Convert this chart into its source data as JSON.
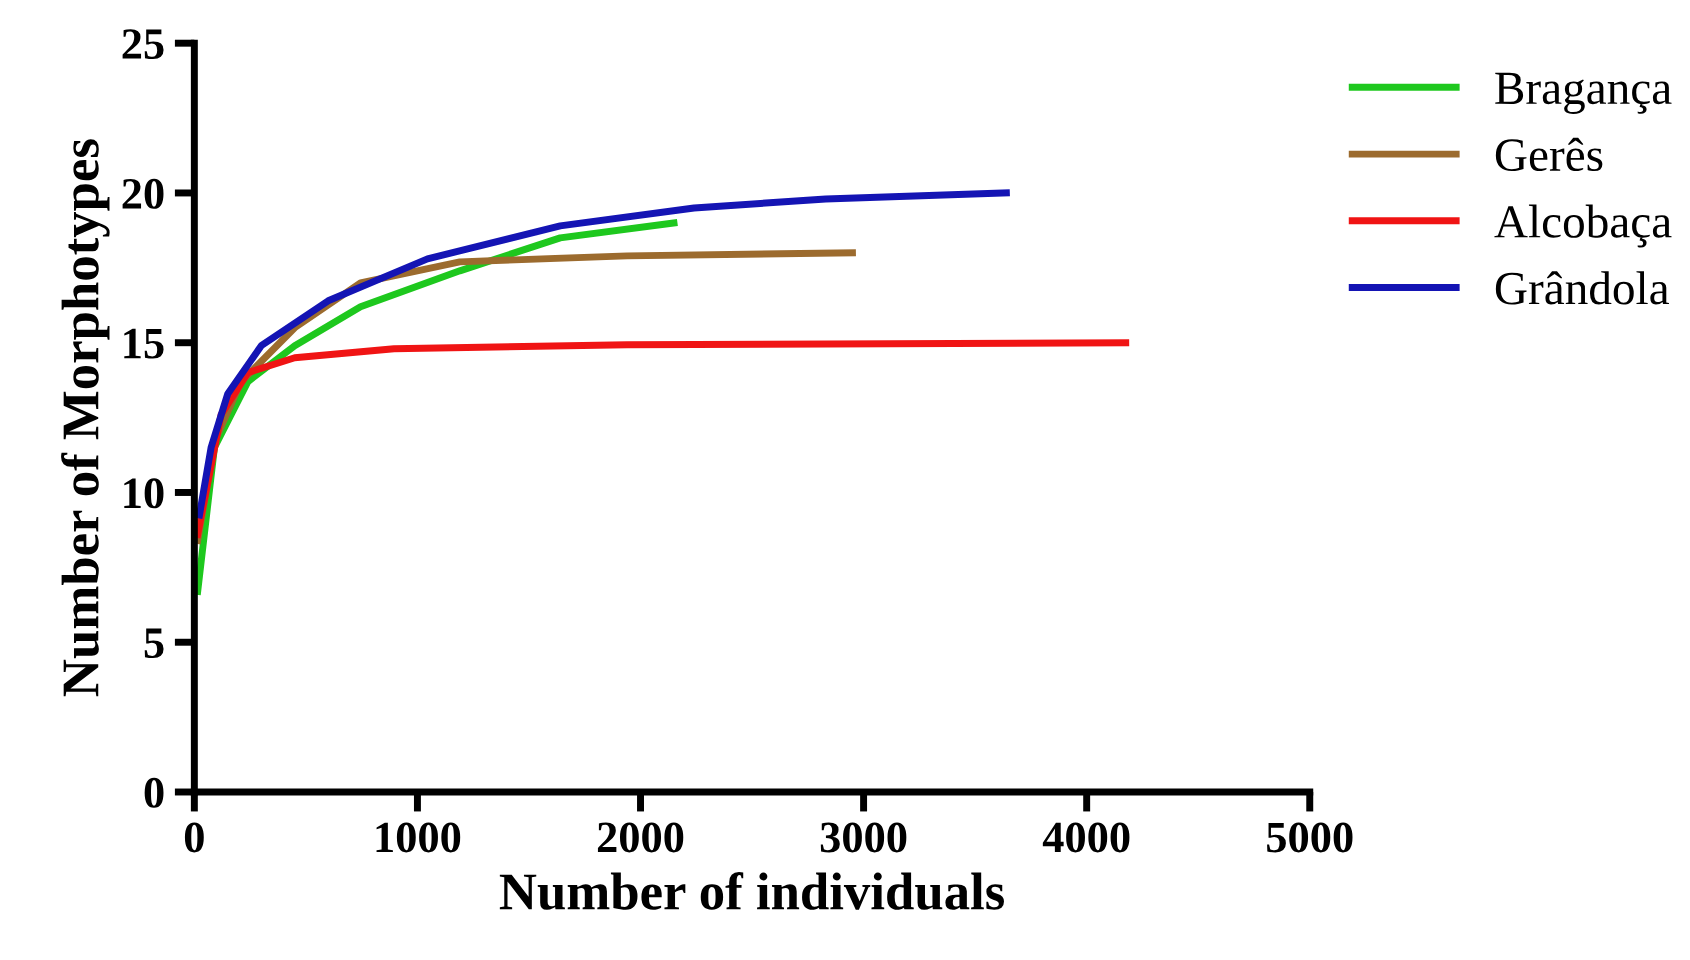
{
  "chart_data": {
    "type": "line",
    "xlabel": "Number of individuals",
    "ylabel": "Number of Morphotypes",
    "xlim": [
      0,
      5000
    ],
    "xticks": [
      0,
      1000,
      2000,
      3000,
      4000,
      5000
    ],
    "ylim": [
      0,
      25
    ],
    "yticks": [
      0,
      5,
      10,
      15,
      20,
      25
    ],
    "grid": false,
    "legend": "top right",
    "marker": "none",
    "line_style": "solid",
    "series": [
      {
        "name": "Bragança",
        "color": "#1ec81e",
        "x": [
          15,
          90,
          240,
          450,
          745,
          1190,
          1640,
          2150
        ],
        "values": [
          6.7,
          11.5,
          13.7,
          14.9,
          16.2,
          17.4,
          18.5,
          19.0
        ]
      },
      {
        "name": "Gerês",
        "color": "#9c6b2e",
        "x": [
          15,
          90,
          210,
          450,
          745,
          1190,
          1940,
          2950
        ],
        "values": [
          8.4,
          11.7,
          13.7,
          15.5,
          17.0,
          17.7,
          17.9,
          18.0
        ]
      },
      {
        "name": "Alcobaça",
        "color": "#f01414",
        "x": [
          15,
          120,
          240,
          450,
          895,
          1940,
          4175
        ],
        "values": [
          8.6,
          12.6,
          14.0,
          14.5,
          14.8,
          14.93,
          15.0
        ]
      },
      {
        "name": "Grândola",
        "color": "#1414b4",
        "x": [
          23,
          75,
          150,
          300,
          600,
          1045,
          1640,
          2240,
          2830,
          3640
        ],
        "values": [
          9.25,
          11.5,
          13.3,
          14.9,
          16.4,
          17.8,
          18.9,
          19.5,
          19.8,
          20.0
        ]
      }
    ]
  }
}
